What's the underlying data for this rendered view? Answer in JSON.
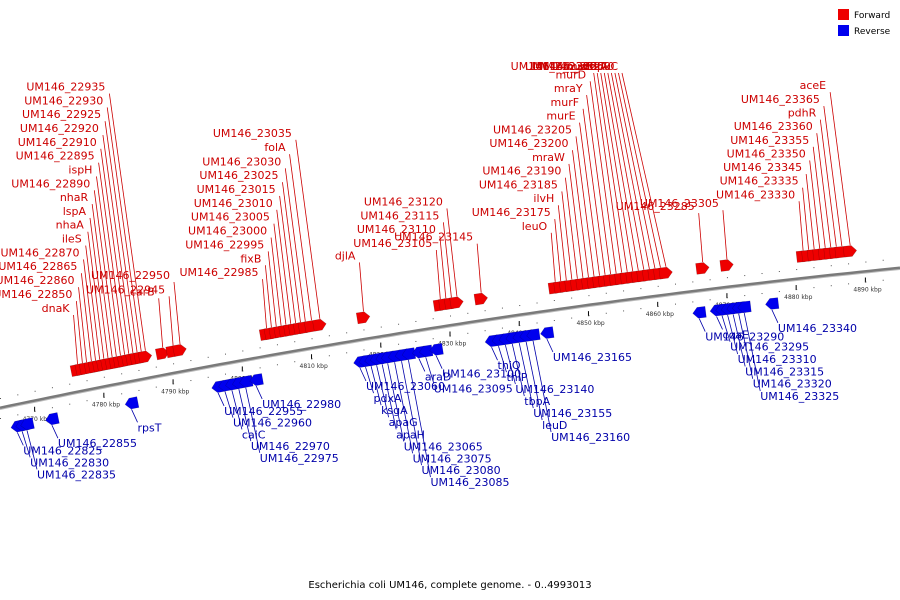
{
  "colors": {
    "forward": "#ee0000",
    "reverse": "#0000ee",
    "backbone": "#7a7a7a",
    "forward_line": "#cc0000",
    "reverse_line": "#0000aa"
  },
  "legend": {
    "forward_label": "Forward",
    "reverse_label": "Reverse"
  },
  "caption": "Escherichia coli UM146, complete genome. - 0..4993013",
  "kbp": {
    "start": 4765,
    "end": 4895,
    "ticks": [
      "4770 kbp",
      "4780 kbp",
      "4790 kbp",
      "4800 kbp",
      "4810 kbp",
      "4820 kbp",
      "4830 kbp",
      "4840 kbp",
      "4850 kbp",
      "4860 kbp",
      "4870 kbp",
      "4880 kbp",
      "4890 kbp"
    ]
  },
  "forward_genes": [
    {
      "label": "dnaK",
      "kb": 4776.2
    },
    {
      "label": "UM146_22850",
      "kb": 4776.9
    },
    {
      "label": "UM146_22860",
      "kb": 4777.5
    },
    {
      "label": "UM146_22865",
      "kb": 4778.2
    },
    {
      "label": "UM146_22870",
      "kb": 4778.8
    },
    {
      "label": "ileS",
      "kb": 4779.4
    },
    {
      "label": "nhaA",
      "kb": 4780.0
    },
    {
      "label": "lspA",
      "kb": 4780.6
    },
    {
      "label": "nhaR",
      "kb": 4781.2
    },
    {
      "label": "UM146_22890",
      "kb": 4781.8
    },
    {
      "label": "ispH",
      "kb": 4782.4
    },
    {
      "label": "UM146_22895",
      "kb": 4783.0
    },
    {
      "label": "UM146_22910",
      "kb": 4783.6
    },
    {
      "label": "UM146_22920",
      "kb": 4784.2
    },
    {
      "label": "UM146_22925",
      "kb": 4784.8
    },
    {
      "label": "UM146_22930",
      "kb": 4785.4
    },
    {
      "label": "UM146_22935",
      "kb": 4786.0
    },
    {
      "label": "carB",
      "kb": 4788.5
    },
    {
      "label": "UM146_22945",
      "kb": 4790.0
    },
    {
      "label": "UM146_22950",
      "kb": 4791.0
    },
    {
      "label": "UM146_22985",
      "kb": 4803.5
    },
    {
      "label": "fixB",
      "kb": 4804.2
    },
    {
      "label": "UM146_22995",
      "kb": 4804.9
    },
    {
      "label": "UM146_23000",
      "kb": 4805.6
    },
    {
      "label": "UM146_23005",
      "kb": 4806.3
    },
    {
      "label": "UM146_23010",
      "kb": 4807.0
    },
    {
      "label": "UM146_23015",
      "kb": 4807.7
    },
    {
      "label": "UM146_23025",
      "kb": 4808.4
    },
    {
      "label": "UM146_23030",
      "kb": 4809.1
    },
    {
      "label": "folA",
      "kb": 4810.0
    },
    {
      "label": "UM146_23035",
      "kb": 4811.2
    },
    {
      "label": "djlA",
      "kb": 4817.5
    },
    {
      "label": "UM146_23105",
      "kb": 4828.6
    },
    {
      "label": "UM146_23110",
      "kb": 4829.4
    },
    {
      "label": "UM146_23115",
      "kb": 4830.2
    },
    {
      "label": "UM146_23120",
      "kb": 4831.0
    },
    {
      "label": "UM146_23145",
      "kb": 4834.5
    },
    {
      "label": "leuO",
      "kb": 4845.2
    },
    {
      "label": "UM146_23175",
      "kb": 4846.0
    },
    {
      "label": "ilvH",
      "kb": 4846.8
    },
    {
      "label": "UM146_23185",
      "kb": 4847.6
    },
    {
      "label": "UM146_23190",
      "kb": 4848.4
    },
    {
      "label": "mraW",
      "kb": 4849.2
    },
    {
      "label": "UM146_23200",
      "kb": 4850.0
    },
    {
      "label": "UM146_23205",
      "kb": 4850.8
    },
    {
      "label": "murE",
      "kb": 4851.6
    },
    {
      "label": "murF",
      "kb": 4852.4
    },
    {
      "label": "mraY",
      "kb": 4853.2
    },
    {
      "label": "murD",
      "kb": 4854.0
    },
    {
      "label": "UM146_23230",
      "kb": 4854.8
    },
    {
      "label": "murG",
      "kb": 4855.6
    },
    {
      "label": "murC",
      "kb": 4856.4
    },
    {
      "label": "ddl",
      "kb": 4857.2
    },
    {
      "label": "UM146_23250",
      "kb": 4858.0
    },
    {
      "label": "ftsA",
      "kb": 4858.8
    },
    {
      "label": "UM146_23260",
      "kb": 4859.6
    },
    {
      "label": "UM146_23270",
      "kb": 4860.4
    },
    {
      "label": "lpxC",
      "kb": 4861.2
    },
    {
      "label": "UM146_23285",
      "kb": 4866.5
    },
    {
      "label": "UM146_23305",
      "kb": 4870.0
    },
    {
      "label": "UM146_23330",
      "kb": 4881.0
    },
    {
      "label": "UM146_23335",
      "kb": 4881.8
    },
    {
      "label": "UM146_23345",
      "kb": 4882.6
    },
    {
      "label": "UM146_23350",
      "kb": 4883.4
    },
    {
      "label": "UM146_23355",
      "kb": 4884.2
    },
    {
      "label": "UM146_23360",
      "kb": 4885.0
    },
    {
      "label": "pdhR",
      "kb": 4885.8
    },
    {
      "label": "UM146_23365",
      "kb": 4886.6
    },
    {
      "label": "aceE",
      "kb": 4887.8
    }
  ],
  "reverse_genes": [
    {
      "label": "UM146_22825",
      "kb": 4767.5
    },
    {
      "label": "UM146_22830",
      "kb": 4768.2
    },
    {
      "label": "UM146_22835",
      "kb": 4768.9
    },
    {
      "label": "UM146_22855",
      "kb": 4772.5
    },
    {
      "label": "rpsT",
      "kb": 4784.0
    },
    {
      "label": "UM146_22955",
      "kb": 4796.5
    },
    {
      "label": "UM146_22960",
      "kb": 4797.5
    },
    {
      "label": "caiC",
      "kb": 4798.5
    },
    {
      "label": "UM146_22970",
      "kb": 4799.5
    },
    {
      "label": "UM146_22975",
      "kb": 4800.5
    },
    {
      "label": "UM146_22980",
      "kb": 4802.0
    },
    {
      "label": "UM146_23060",
      "kb": 4817.0
    },
    {
      "label": "pdxA",
      "kb": 4817.8
    },
    {
      "label": "ksgA",
      "kb": 4818.6
    },
    {
      "label": "apaG",
      "kb": 4819.4
    },
    {
      "label": "apaH",
      "kb": 4820.2
    },
    {
      "label": "UM146_23065",
      "kb": 4821.0
    },
    {
      "label": "UM146_23075",
      "kb": 4822.0
    },
    {
      "label": "UM146_23080",
      "kb": 4823.0
    },
    {
      "label": "UM146_23085",
      "kb": 4824.0
    },
    {
      "label": "araD",
      "kb": 4825.5
    },
    {
      "label": "UM146_23095",
      "kb": 4826.5
    },
    {
      "label": "UM146_23100",
      "kb": 4828.0
    },
    {
      "label": "thiQ",
      "kb": 4836.0
    },
    {
      "label": "thiP",
      "kb": 4837.0
    },
    {
      "label": "UM146_23140",
      "kb": 4838.0
    },
    {
      "label": "tbpA",
      "kb": 4839.0
    },
    {
      "label": "UM146_23155",
      "kb": 4840.0
    },
    {
      "label": "leuD",
      "kb": 4841.0
    },
    {
      "label": "UM146_23160",
      "kb": 4842.0
    },
    {
      "label": "UM146_23165",
      "kb": 4844.0
    },
    {
      "label": "UM146_23290",
      "kb": 4866.0
    },
    {
      "label": "coaE",
      "kb": 4868.5
    },
    {
      "label": "UM146_23295",
      "kb": 4869.3
    },
    {
      "label": "UM146_23310",
      "kb": 4870.1
    },
    {
      "label": "UM146_23315",
      "kb": 4870.9
    },
    {
      "label": "UM146_23320",
      "kb": 4871.7
    },
    {
      "label": "UM146_23325",
      "kb": 4872.5
    },
    {
      "label": "UM146_23340",
      "kb": 4876.5
    }
  ]
}
